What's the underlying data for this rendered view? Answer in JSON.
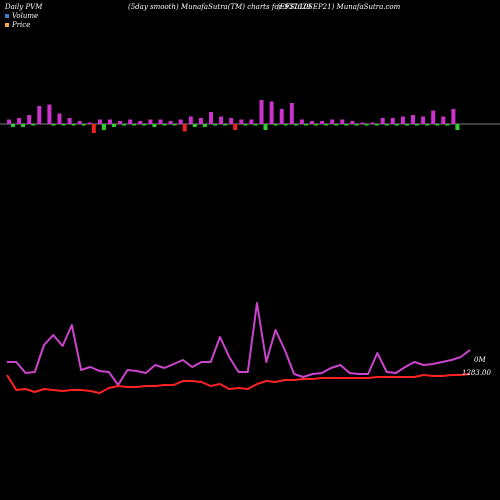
{
  "header": {
    "left": "Daily PVM",
    "center": "(5day smooth) MunafaSutra(TM) charts for 937629",
    "right": "(EFSL10SEP21) MunafaSutra.com"
  },
  "legend": {
    "volume_label": "Volume",
    "price_label": "Price",
    "volume_color": "#3a7bd5",
    "price_color": "#f4a742"
  },
  "labels": {
    "volume_marker": "0M",
    "price_marker": "1283.00"
  },
  "colors": {
    "background": "#000000",
    "bar_up": "#cc33cc",
    "bar_down_green": "#33cc33",
    "bar_down_red": "#ee2222",
    "volume_line": "#cc44cc",
    "price_line": "#ff2222",
    "baseline": "#ffffff"
  },
  "chart_data": {
    "type": "line",
    "bars": [
      {
        "up": 3,
        "down": 2,
        "color": "green"
      },
      {
        "up": 4,
        "down": 2,
        "color": "green"
      },
      {
        "up": 6,
        "down": 1,
        "color": "green"
      },
      {
        "up": 12,
        "down": 0,
        "color": "green"
      },
      {
        "up": 13,
        "down": 1,
        "color": "green"
      },
      {
        "up": 7,
        "down": 1,
        "color": "green"
      },
      {
        "up": 4,
        "down": 1,
        "color": "green"
      },
      {
        "up": 2,
        "down": 1,
        "color": "green"
      },
      {
        "up": 1,
        "down": 6,
        "color": "red"
      },
      {
        "up": 3,
        "down": 4,
        "color": "green"
      },
      {
        "up": 3,
        "down": 2,
        "color": "green"
      },
      {
        "up": 2,
        "down": 1,
        "color": "green"
      },
      {
        "up": 3,
        "down": 1,
        "color": "green"
      },
      {
        "up": 2,
        "down": 1,
        "color": "green"
      },
      {
        "up": 3,
        "down": 2,
        "color": "green"
      },
      {
        "up": 3,
        "down": 1,
        "color": "green"
      },
      {
        "up": 2,
        "down": 1,
        "color": "green"
      },
      {
        "up": 3,
        "down": 5,
        "color": "red"
      },
      {
        "up": 5,
        "down": 2,
        "color": "green"
      },
      {
        "up": 4,
        "down": 2,
        "color": "green"
      },
      {
        "up": 8,
        "down": 1,
        "color": "green"
      },
      {
        "up": 5,
        "down": 1,
        "color": "green"
      },
      {
        "up": 4,
        "down": 4,
        "color": "red"
      },
      {
        "up": 3,
        "down": 1,
        "color": "green"
      },
      {
        "up": 3,
        "down": 1,
        "color": "green"
      },
      {
        "up": 16,
        "down": 4,
        "color": "green"
      },
      {
        "up": 15,
        "down": 1,
        "color": "green"
      },
      {
        "up": 10,
        "down": 1,
        "color": "green"
      },
      {
        "up": 14,
        "down": 1,
        "color": "green"
      },
      {
        "up": 3,
        "down": 1,
        "color": "green"
      },
      {
        "up": 2,
        "down": 1,
        "color": "green"
      },
      {
        "up": 2,
        "down": 1,
        "color": "green"
      },
      {
        "up": 3,
        "down": 1,
        "color": "green"
      },
      {
        "up": 3,
        "down": 1,
        "color": "green"
      },
      {
        "up": 2,
        "down": 1,
        "color": "green"
      },
      {
        "up": 1,
        "down": 1,
        "color": "green"
      },
      {
        "up": 1,
        "down": 1,
        "color": "green"
      },
      {
        "up": 4,
        "down": 1,
        "color": "green"
      },
      {
        "up": 4,
        "down": 1,
        "color": "green"
      },
      {
        "up": 5,
        "down": 1,
        "color": "green"
      },
      {
        "up": 6,
        "down": 1,
        "color": "green"
      },
      {
        "up": 5,
        "down": 1,
        "color": "green"
      },
      {
        "up": 9,
        "down": 1,
        "color": "green"
      },
      {
        "up": 5,
        "down": 1,
        "color": "green"
      },
      {
        "up": 10,
        "down": 4,
        "color": "green"
      }
    ],
    "volume_line": [
      362,
      362,
      373,
      372,
      345,
      335,
      346,
      325,
      370,
      367,
      371,
      372,
      385,
      370,
      371,
      373,
      365,
      368,
      364,
      360,
      367,
      362,
      362,
      337,
      357,
      372,
      372,
      303,
      362,
      330,
      350,
      374,
      377,
      374,
      373,
      368,
      365,
      373,
      374,
      374,
      353,
      372,
      373,
      367,
      362,
      365,
      364,
      362,
      360,
      357,
      350
    ],
    "price_line": [
      375,
      390,
      389,
      392,
      389,
      390,
      391,
      390,
      390,
      391,
      393,
      388,
      386,
      387,
      387,
      386,
      386,
      385,
      385,
      381,
      381,
      382,
      386,
      384,
      389,
      388,
      389,
      384,
      381,
      382,
      380,
      380,
      379,
      379,
      378,
      378,
      378,
      378,
      378,
      378,
      377,
      377,
      377,
      377,
      377,
      375,
      376,
      376,
      375,
      375,
      374
    ]
  }
}
